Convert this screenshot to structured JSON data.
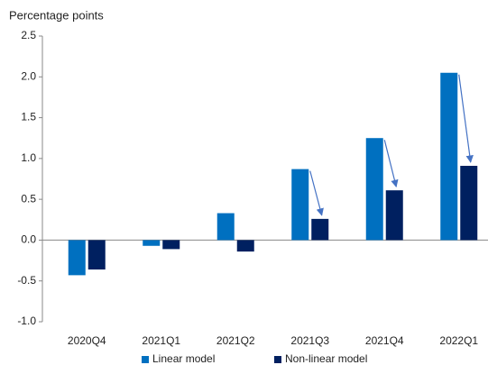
{
  "chart_data": {
    "type": "bar",
    "y_axis_label": "Percentage points",
    "categories": [
      "2020Q4",
      "2021Q1",
      "2021Q2",
      "2021Q3",
      "2021Q4",
      "2022Q1"
    ],
    "series": [
      {
        "name": "Linear model",
        "color": "#0070c0",
        "values": [
          -0.43,
          -0.07,
          0.33,
          0.87,
          1.25,
          2.05
        ]
      },
      {
        "name": "Non-linear model",
        "color": "#002060",
        "values": [
          -0.36,
          -0.11,
          -0.14,
          0.26,
          0.61,
          0.91
        ]
      }
    ],
    "ylim": [
      -1.0,
      2.5
    ],
    "yticks": [
      {
        "value": -1,
        "label": "-1.0"
      },
      -0.5,
      {
        "value": 0,
        "label": "0.0"
      },
      0.5,
      {
        "value": 1,
        "label": "1.0"
      },
      1.5,
      {
        "value": 2,
        "label": "2.0"
      },
      2.5
    ],
    "legend": "bottom"
  }
}
